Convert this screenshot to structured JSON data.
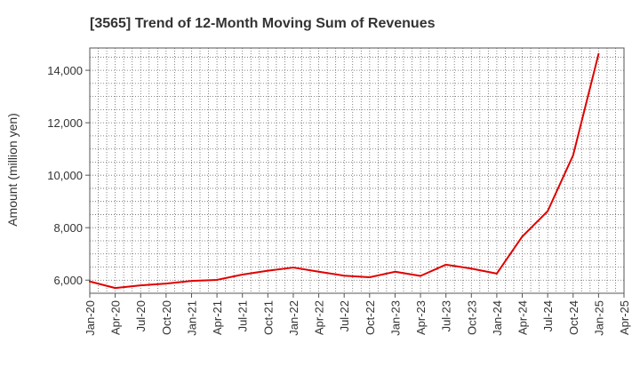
{
  "chart_data": {
    "type": "line",
    "title": "[3565]  Trend of 12-Month Moving Sum of Revenues",
    "xlabel": "",
    "ylabel": "Amount (million yen)",
    "x_ticks": [
      "Jan-20",
      "Apr-20",
      "Jul-20",
      "Oct-20",
      "Jan-21",
      "Apr-21",
      "Jul-21",
      "Oct-21",
      "Jan-22",
      "Apr-22",
      "Jul-22",
      "Oct-22",
      "Jan-23",
      "Apr-23",
      "Jul-23",
      "Oct-23",
      "Jan-24",
      "Apr-24",
      "Jul-24",
      "Oct-24",
      "Jan-25",
      "Apr-25"
    ],
    "y_ticks": [
      6000,
      8000,
      10000,
      12000,
      14000
    ],
    "y_tick_labels": [
      "6,000",
      "8,000",
      "10,000",
      "12,000",
      "14,000"
    ],
    "ylim": [
      5500,
      14850
    ],
    "grid": true,
    "series": [
      {
        "color": "#e00000",
        "x": [
          "Jan-20",
          "Apr-20",
          "Jul-20",
          "Oct-20",
          "Jan-21",
          "Apr-21",
          "Jul-21",
          "Oct-21",
          "Jan-22",
          "Apr-22",
          "Jul-22",
          "Oct-22",
          "Jan-23",
          "Apr-23",
          "Jul-23",
          "Oct-23",
          "Jan-24",
          "Apr-24",
          "Jul-24",
          "Oct-24",
          "Jan-25"
        ],
        "values": [
          5950,
          5700,
          5800,
          5870,
          5970,
          6010,
          6210,
          6360,
          6480,
          6320,
          6170,
          6110,
          6320,
          6160,
          6590,
          6440,
          6250,
          7660,
          8630,
          10760,
          14620
        ]
      }
    ]
  }
}
